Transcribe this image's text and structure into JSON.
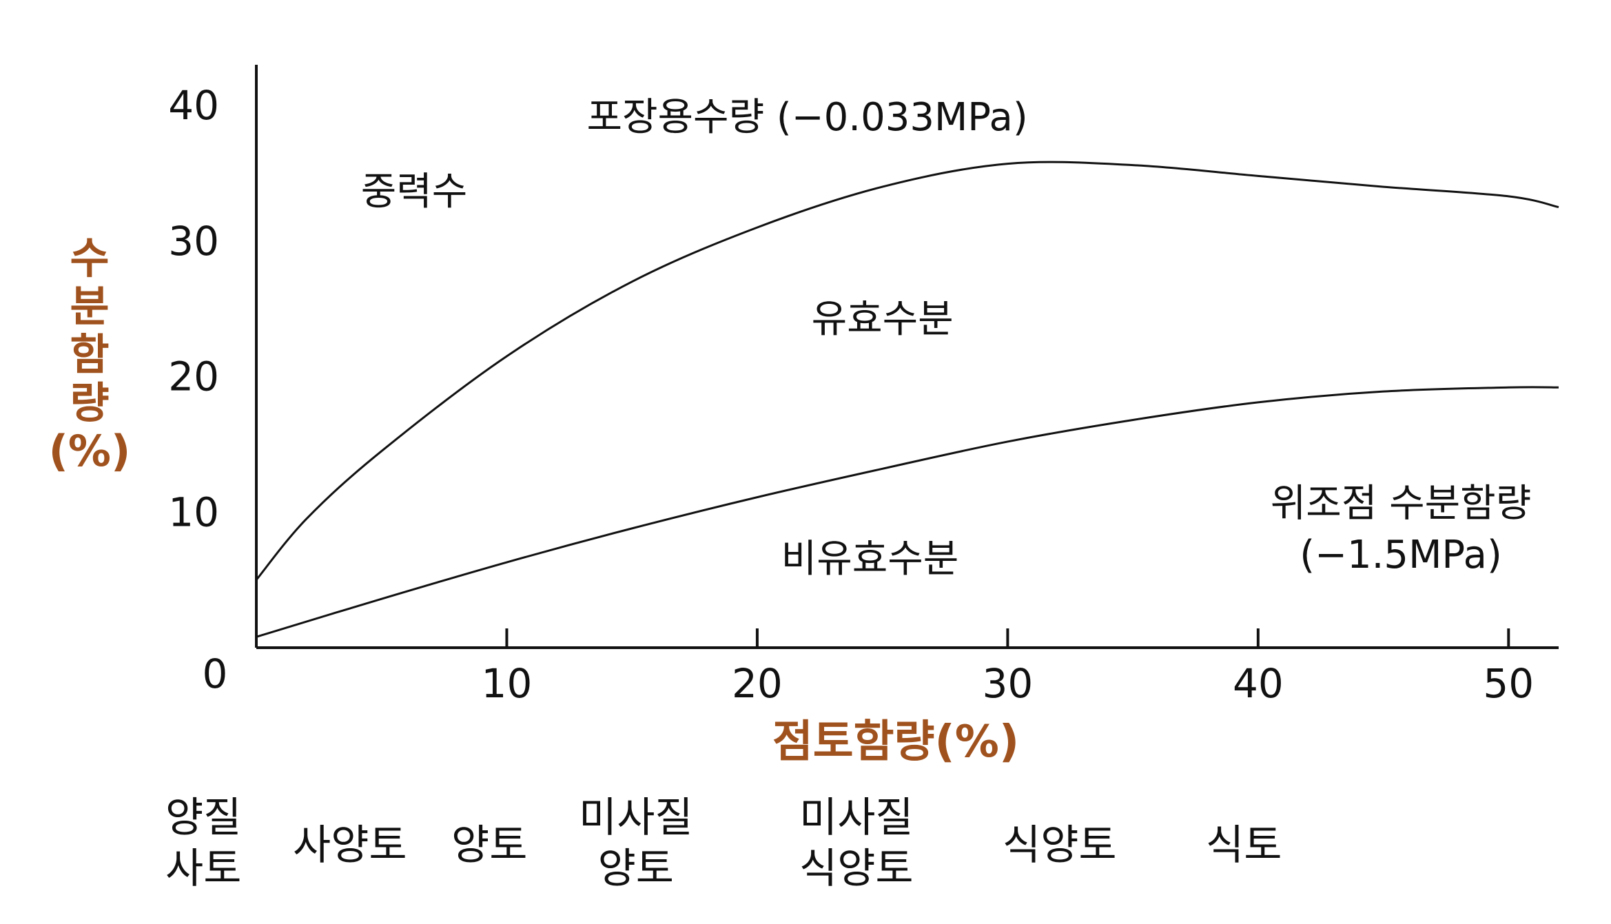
{
  "chart_data": {
    "type": "line",
    "title": "",
    "xlabel": "점토함량(%)",
    "ylabel_lines": [
      "수",
      "분",
      "함",
      "량",
      "(%)"
    ],
    "xlim": [
      0,
      52
    ],
    "ylim": [
      0,
      43
    ],
    "xticks": [
      10,
      20,
      30,
      40,
      50
    ],
    "xtick_labels": [
      "10",
      "20",
      "30",
      "40",
      "50"
    ],
    "yticks": [
      0,
      10,
      20,
      30,
      40
    ],
    "ytick_labels": [
      "0",
      "10",
      "20",
      "30",
      "40"
    ],
    "grid": false,
    "series": [
      {
        "name": "포장용수량 (−0.033MPa)",
        "x": [
          0,
          2,
          5,
          10,
          15,
          20,
          25,
          30,
          35,
          40,
          45,
          50,
          52
        ],
        "y": [
          5,
          9.5,
          14.5,
          21.5,
          27,
          31,
          34,
          35.7,
          35.6,
          34.8,
          34,
          33.3,
          32.5
        ]
      },
      {
        "name": "위조점 수분함량 (−1.5MPa)",
        "x": [
          0,
          5,
          10,
          15,
          20,
          25,
          30,
          35,
          40,
          45,
          50,
          52
        ],
        "y": [
          0.8,
          3.6,
          6.3,
          8.8,
          11.1,
          13.2,
          15.2,
          16.8,
          18.1,
          18.9,
          19.2,
          19.2
        ]
      }
    ],
    "annotations": [
      {
        "id": "gravity",
        "text": "중력수",
        "x": 6.3,
        "y": 33.7
      },
      {
        "id": "fieldcap",
        "text": "포장용수량 (−0.033MPa)",
        "x": 22,
        "y": 39.2
      },
      {
        "id": "available",
        "text": "유효수분",
        "x": 25,
        "y": 24.3
      },
      {
        "id": "unavailable",
        "text": "비유효수분",
        "x": 24.5,
        "y": 6.6
      },
      {
        "id": "wilting1",
        "text": "위조점 수분함량",
        "x": 45.7,
        "y": 10.7
      },
      {
        "id": "wilting2",
        "text": "(−1.5MPa)",
        "x": 45.7,
        "y": 6.9
      }
    ],
    "colors": {
      "axis": "#111111",
      "line": "#111111",
      "label_accent": "#A0521E"
    }
  },
  "soil_classes": [
    {
      "lines": [
        "양질",
        "사토"
      ]
    },
    {
      "lines": [
        "사양토"
      ]
    },
    {
      "lines": [
        "양토"
      ]
    },
    {
      "lines": [
        "미사질",
        "양토"
      ]
    },
    {
      "lines": [
        "미사질",
        "식양토"
      ]
    },
    {
      "lines": [
        "식양토"
      ]
    },
    {
      "lines": [
        "식토"
      ]
    }
  ]
}
